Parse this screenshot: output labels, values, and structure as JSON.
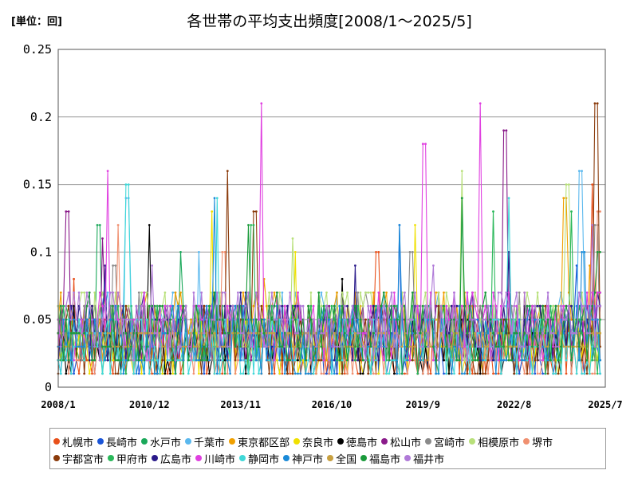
{
  "chart_data": {
    "type": "line",
    "title": "各世帯の平均支出頻度[2008/1～2025/5]",
    "unit_label": "[単位：回]",
    "ylim": [
      0,
      0.25
    ],
    "y_ticks": [
      "0",
      "0.05",
      "0.1",
      "0.15",
      "0.2",
      "0.25"
    ],
    "x_ticks": [
      "2008/1",
      "2010/12",
      "2013/11",
      "2016/10",
      "2019/9",
      "2022/8",
      "2025/7"
    ],
    "x_range": [
      "2008/1",
      "2025/7"
    ],
    "grid": "horizontal",
    "legend_position": "bottom",
    "series": [
      {
        "name": "札幌市",
        "color": "#e8501a",
        "peaks": [
          [
            2008.5,
            0.08
          ],
          [
            2015.3,
            0.05
          ],
          [
            2018.2,
            0.1
          ],
          [
            2025.1,
            0.15
          ]
        ]
      },
      {
        "name": "長崎市",
        "color": "#1a55d8",
        "peaks": [
          [
            2009.5,
            0.08
          ],
          [
            2018.9,
            0.12
          ],
          [
            2024.6,
            0.09
          ]
        ]
      },
      {
        "name": "水戸市",
        "color": "#1aa85a",
        "peaks": [
          [
            2009.3,
            0.12
          ],
          [
            2011.9,
            0.1
          ],
          [
            2020.9,
            0.14
          ]
        ]
      },
      {
        "name": "千葉市",
        "color": "#5ab8ee",
        "peaks": [
          [
            2010.2,
            0.14
          ],
          [
            2012.5,
            0.1
          ],
          [
            2024.7,
            0.16
          ]
        ]
      },
      {
        "name": "東京都区部",
        "color": "#f0a000",
        "peaks": [
          [
            2014.6,
            0.08
          ],
          [
            2024.2,
            0.14
          ],
          [
            2025.0,
            0.09
          ]
        ]
      },
      {
        "name": "奈良市",
        "color": "#f0e000",
        "peaks": [
          [
            2012.9,
            0.13
          ],
          [
            2015.6,
            0.1
          ],
          [
            2019.4,
            0.12
          ]
        ]
      },
      {
        "name": "徳島市",
        "color": "#000000",
        "peaks": [
          [
            2010.9,
            0.12
          ],
          [
            2017.1,
            0.08
          ],
          [
            2025.3,
            0.07
          ]
        ]
      },
      {
        "name": "松山市",
        "color": "#8a1a8a",
        "peaks": [
          [
            2008.3,
            0.13
          ],
          [
            2009.4,
            0.11
          ],
          [
            2022.3,
            0.19
          ]
        ]
      },
      {
        "name": "宮崎市",
        "color": "#8a8a8a",
        "peaks": [
          [
            2009.8,
            0.09
          ],
          [
            2019.3,
            0.1
          ],
          [
            2025.2,
            0.12
          ]
        ]
      },
      {
        "name": "相模原市",
        "color": "#b8e07a",
        "peaks": [
          [
            2015.5,
            0.11
          ],
          [
            2020.9,
            0.16
          ],
          [
            2024.3,
            0.15
          ]
        ]
      },
      {
        "name": "堺市",
        "color": "#f09070",
        "peaks": [
          [
            2009.9,
            0.12
          ],
          [
            2013.3,
            0.1
          ],
          [
            2025.3,
            0.13
          ]
        ]
      },
      {
        "name": "宇都宮市",
        "color": "#8a3a0a",
        "peaks": [
          [
            2013.4,
            0.16
          ],
          [
            2014.3,
            0.13
          ],
          [
            2025.2,
            0.21
          ]
        ]
      },
      {
        "name": "甲府市",
        "color": "#2ab85a",
        "peaks": [
          [
            2014.2,
            0.12
          ],
          [
            2021.9,
            0.13
          ],
          [
            2024.4,
            0.13
          ]
        ]
      },
      {
        "name": "広島市",
        "color": "#2a1a8a",
        "peaks": [
          [
            2009.5,
            0.09
          ],
          [
            2017.5,
            0.09
          ],
          [
            2022.4,
            0.1
          ]
        ]
      },
      {
        "name": "川崎市",
        "color": "#e040e0",
        "peaks": [
          [
            2009.6,
            0.16
          ],
          [
            2014.5,
            0.21
          ],
          [
            2019.7,
            0.18
          ],
          [
            2021.5,
            0.21
          ]
        ]
      },
      {
        "name": "静岡市",
        "color": "#40d8d8",
        "peaks": [
          [
            2010.2,
            0.15
          ],
          [
            2013.1,
            0.14
          ],
          [
            2022.4,
            0.14
          ]
        ]
      },
      {
        "name": "神戸市",
        "color": "#1a8ad8",
        "peaks": [
          [
            2013.0,
            0.14
          ],
          [
            2018.9,
            0.12
          ],
          [
            2024.8,
            0.1
          ]
        ]
      },
      {
        "name": "全国",
        "color": "#c8a040",
        "peaks": [
          [
            2010.0,
            0.05
          ],
          [
            2018.0,
            0.05
          ],
          [
            2024.0,
            0.06
          ]
        ]
      },
      {
        "name": "福島市",
        "color": "#1a9a3a",
        "peaks": [
          [
            2014.1,
            0.12
          ],
          [
            2020.9,
            0.14
          ],
          [
            2025.3,
            0.1
          ]
        ]
      },
      {
        "name": "福井市",
        "color": "#b07ad8",
        "peaks": [
          [
            2011.0,
            0.09
          ],
          [
            2020.0,
            0.09
          ],
          [
            2025.1,
            0.12
          ]
        ]
      }
    ]
  }
}
